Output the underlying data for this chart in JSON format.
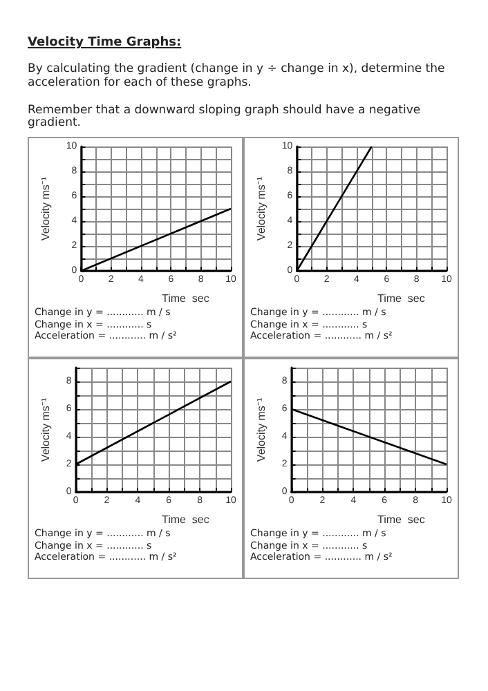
{
  "chart_data": [
    {
      "type": "line",
      "title": "Velocity Time Graphs:",
      "subtitle": "By calculating the gradient (change in y ÷ change in x), determine the acceleration for each of these graphs.\n\nRemember that a downward sloping graph should have a negative gradient.",
      "xlabel": "Time  sec",
      "ylabel": "Velocity ms⁻¹",
      "x": [
        0,
        10
      ],
      "values": [
        0,
        5
      ],
      "color": "#000000",
      "xlim": [
        0,
        10
      ],
      "ylim": [
        0,
        10
      ],
      "xticks": [
        0,
        {
          "value": 1,
          "label": null
        },
        2,
        {
          "value": 3,
          "label": null
        },
        4,
        {
          "value": 5,
          "label": null
        },
        6,
        {
          "value": 7,
          "label": null
        },
        8,
        {
          "value": 9,
          "label": null
        },
        10
      ],
      "yticks": [
        0,
        {
          "value": 1,
          "label": null
        },
        2,
        {
          "value": 3,
          "label": null
        },
        4,
        {
          "value": 5,
          "label": null
        },
        6,
        {
          "value": 7,
          "label": null
        },
        8,
        {
          "value": 9,
          "label": null
        },
        10
      ],
      "grid": true,
      "marker": "none",
      "annotations": [
        "Change in y = ............ m / s",
        "Change in x = ............ s",
        "Acceleration = ............ m / s²"
      ]
    },
    {
      "type": "line",
      "xlabel": "Time  sec",
      "ylabel": "Velocity ms⁻¹",
      "x": [
        0,
        5
      ],
      "values": [
        0,
        10
      ],
      "color": "#000000",
      "xlim": [
        0,
        10
      ],
      "ylim": [
        0,
        10
      ],
      "xticks": [
        0,
        {
          "value": 1,
          "label": null
        },
        2,
        {
          "value": 3,
          "label": null
        },
        4,
        {
          "value": 5,
          "label": null
        },
        6,
        {
          "value": 7,
          "label": null
        },
        8,
        {
          "value": 9,
          "label": null
        },
        10
      ],
      "yticks": [
        0,
        {
          "value": 1,
          "label": null
        },
        2,
        {
          "value": 3,
          "label": null
        },
        4,
        {
          "value": 5,
          "label": null
        },
        6,
        {
          "value": 7,
          "label": null
        },
        8,
        {
          "value": 9,
          "label": null
        },
        10
      ],
      "grid": true,
      "marker": "none",
      "annotations": [
        "Change in y = ............ m / s",
        "Change in x = ............ s",
        "Acceleration = ............ m / s²"
      ]
    },
    {
      "type": "line",
      "xlabel": "Time  sec",
      "ylabel": "Velocity ms⁻¹",
      "x": [
        0,
        10
      ],
      "values": [
        2,
        8
      ],
      "color": "#000000",
      "xlim": [
        0,
        10
      ],
      "ylim": [
        0,
        9
      ],
      "xticks": [
        0,
        {
          "value": 1,
          "label": null
        },
        2,
        {
          "value": 3,
          "label": null
        },
        4,
        {
          "value": 5,
          "label": null
        },
        6,
        {
          "value": 7,
          "label": null
        },
        8,
        {
          "value": 9,
          "label": null
        },
        10
      ],
      "yticks": [
        0,
        {
          "value": 1,
          "label": null
        },
        2,
        {
          "value": 3,
          "label": null
        },
        4,
        {
          "value": 5,
          "label": null
        },
        6,
        {
          "value": 7,
          "label": null
        },
        8,
        {
          "value": 9,
          "label": null
        }
      ],
      "grid": true,
      "marker": "none",
      "annotations": [
        "Change in y = ............ m / s",
        "Change in x = ............ s",
        "Acceleration = ............ m / s²"
      ]
    },
    {
      "type": "line",
      "xlabel": "Time  sec",
      "ylabel": "Velocity ms⁻¹",
      "x": [
        0,
        10
      ],
      "values": [
        6,
        2
      ],
      "color": "#000000",
      "xlim": [
        0,
        10
      ],
      "ylim": [
        0,
        9
      ],
      "xticks": [
        0,
        {
          "value": 1,
          "label": null
        },
        2,
        {
          "value": 3,
          "label": null
        },
        4,
        {
          "value": 5,
          "label": null
        },
        6,
        {
          "value": 7,
          "label": null
        },
        8,
        {
          "value": 9,
          "label": null
        },
        10
      ],
      "yticks": [
        0,
        {
          "value": 1,
          "label": null
        },
        2,
        {
          "value": 3,
          "label": null
        },
        4,
        {
          "value": 5,
          "label": null
        },
        6,
        {
          "value": 7,
          "label": null
        },
        8,
        {
          "value": 9,
          "label": null
        }
      ],
      "grid": true,
      "marker": "none",
      "annotations": [
        "Change in y = ............ m / s",
        "Change in x = ............ s",
        "Acceleration = ............ m / s²"
      ]
    }
  ]
}
